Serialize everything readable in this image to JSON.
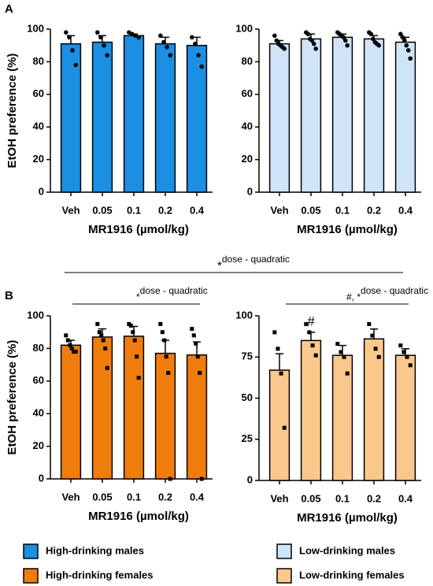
{
  "panel_labels": [
    "A",
    "B"
  ],
  "annotations": [
    {
      "mark": "*",
      "text": "dose - quadratic"
    }
  ],
  "chart_data": [
    {
      "type": "bar",
      "ylabel": "EtOH preference (%)",
      "xlabel": "MR1916 (µmol/kg)",
      "categories": [
        "Veh",
        "0.05",
        "0.1",
        "0.2",
        "0.4"
      ],
      "ylim": [
        0,
        100
      ],
      "yticks": [
        0,
        20,
        40,
        60,
        80,
        100
      ],
      "marker": "circle",
      "series": [
        {
          "name": "High-drinking males",
          "color": "#1b8fe4",
          "values": [
            91,
            92,
            96,
            91,
            90
          ],
          "errors": [
            5,
            4,
            1,
            4,
            5
          ],
          "points": [
            [
              98,
              95,
              87,
              78
            ],
            [
              98,
              95,
              90,
              84
            ],
            [
              98,
              97,
              96,
              95
            ],
            [
              96,
              92,
              89,
              84
            ],
            [
              95,
              91,
              84,
              77
            ]
          ]
        }
      ]
    },
    {
      "type": "bar",
      "xlabel": "MR1916 (µmol/kg)",
      "categories": [
        "Veh",
        "0.05",
        "0.1",
        "0.2",
        "0.4"
      ],
      "ylim": [
        0,
        100
      ],
      "yticks": [
        0,
        20,
        40,
        60,
        80,
        100
      ],
      "marker": "circle",
      "series": [
        {
          "name": "Low-drinking males",
          "color": "#cfe4f7",
          "values": [
            91,
            94,
            95,
            94,
            92
          ],
          "errors": [
            2,
            3,
            2,
            2,
            3
          ],
          "points": [
            [
              96,
              93,
              91,
              90,
              89,
              88
            ],
            [
              98,
              97,
              94,
              93,
              91,
              88
            ],
            [
              98,
              97,
              96,
              95,
              93,
              90
            ],
            [
              98,
              97,
              94,
              92,
              91,
              90
            ],
            [
              97,
              95,
              93,
              90,
              87,
              82
            ]
          ]
        }
      ]
    },
    {
      "type": "bar",
      "ylabel": "EtOH preference (%)",
      "xlabel": "MR1916 (µmol/kg)",
      "categories": [
        "Veh",
        "0.05",
        "0.1",
        "0.2",
        "0.4"
      ],
      "ylim": [
        0,
        100
      ],
      "yticks": [
        0,
        20,
        40,
        60,
        80,
        100
      ],
      "marker": "square",
      "annotations": [
        {
          "mark": "*",
          "text": "dose - quadratic"
        }
      ],
      "series": [
        {
          "name": "High-drinking females",
          "color": "#f07d0b",
          "values": [
            82,
            87,
            87.5,
            77,
            76
          ],
          "errors": [
            3,
            5,
            6,
            8,
            8
          ],
          "points": [
            [
              88,
              85,
              82,
              80,
              78,
              78
            ],
            [
              95,
              90,
              88,
              85,
              80,
              68
            ],
            [
              95,
              94,
              90,
              85,
              75,
              62
            ],
            [
              95,
              90,
              85,
              75,
              65,
              0
            ],
            [
              92,
              88,
              83,
              75,
              65,
              0
            ]
          ]
        }
      ]
    },
    {
      "type": "bar",
      "xlabel": "MR1916 (µmol/kg)",
      "categories": [
        "Veh",
        "0.05",
        "0.1",
        "0.2",
        "0.4"
      ],
      "ylim": [
        0,
        100
      ],
      "yticks": [
        0,
        25,
        50,
        75,
        100
      ],
      "marker": "square",
      "annotations": [
        {
          "mark": "#, *",
          "text": "dose - quadratic"
        },
        {
          "text": "#"
        }
      ],
      "series": [
        {
          "name": "Low-drinking females",
          "color": "#fbc88c",
          "values": [
            67,
            85,
            76,
            86,
            76
          ],
          "errors": [
            10,
            5,
            6,
            6,
            4
          ],
          "points": [
            [
              90,
              80,
              65,
              32
            ],
            [
              95,
              90,
              82,
              76
            ],
            [
              83,
              78,
              75,
              65
            ],
            [
              95,
              88,
              80,
              75
            ],
            [
              82,
              78,
              75,
              70
            ]
          ]
        }
      ]
    }
  ]
}
